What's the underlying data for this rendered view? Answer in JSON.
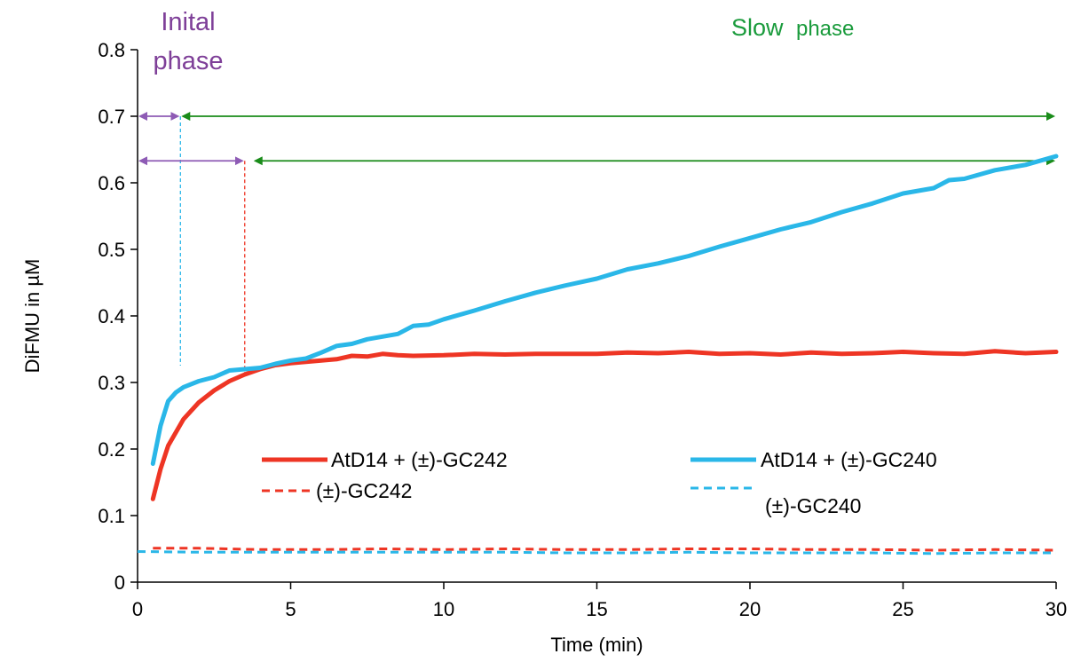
{
  "chart_data": {
    "type": "line",
    "title": "",
    "xlabel": "Time (min)",
    "ylabel": "DiFMU in µM",
    "xlim": [
      0,
      30
    ],
    "ylim": [
      0,
      0.8
    ],
    "x_ticks": [
      0,
      5,
      10,
      15,
      20,
      25,
      30
    ],
    "y_ticks": [
      0,
      0.1,
      0.2,
      0.3,
      0.4,
      0.5,
      0.6,
      0.7,
      0.8
    ],
    "x_tick_labels": [
      "0",
      "5",
      "10",
      "15",
      "20",
      "25",
      "30"
    ],
    "y_tick_labels": [
      "0",
      "0.1",
      "0.2",
      "0.3",
      "0.4",
      "0.5",
      "0.6",
      "0.7",
      "0.8"
    ],
    "grid": false,
    "legend_position": "center",
    "series": [
      {
        "name": "AtD14 + (±)-GC242",
        "color": "#ee3524",
        "style": "solid",
        "x": [
          0.5,
          0.75,
          1.0,
          1.5,
          2.0,
          2.5,
          3.0,
          3.5,
          4.0,
          4.5,
          5.0,
          5.5,
          6.0,
          6.5,
          7.0,
          7.5,
          8.0,
          8.5,
          9.0,
          10.0,
          11.0,
          12.0,
          13.0,
          14.0,
          15.0,
          16.0,
          17.0,
          18.0,
          19.0,
          20.0,
          21.0,
          22.0,
          23.0,
          24.0,
          25.0,
          26.0,
          27.0,
          28.0,
          29.0,
          30.0
        ],
        "y": [
          0.125,
          0.17,
          0.205,
          0.245,
          0.27,
          0.288,
          0.302,
          0.312,
          0.32,
          0.326,
          0.329,
          0.331,
          0.333,
          0.335,
          0.34,
          0.339,
          0.343,
          0.341,
          0.34,
          0.341,
          0.343,
          0.342,
          0.343,
          0.343,
          0.343,
          0.345,
          0.344,
          0.346,
          0.343,
          0.344,
          0.342,
          0.345,
          0.343,
          0.344,
          0.346,
          0.344,
          0.343,
          0.347,
          0.344,
          0.346
        ]
      },
      {
        "name": "AtD14 + (±)-GC240",
        "color": "#2ab7e8",
        "style": "solid",
        "x": [
          0.5,
          0.75,
          1.0,
          1.25,
          1.5,
          2.0,
          2.5,
          3.0,
          3.5,
          4.0,
          4.5,
          5.0,
          5.5,
          6.0,
          6.5,
          7.0,
          7.5,
          8.0,
          8.5,
          9.0,
          9.5,
          10.0,
          11.0,
          12.0,
          13.0,
          14.0,
          15.0,
          16.0,
          17.0,
          18.0,
          19.0,
          20.0,
          21.0,
          22.0,
          23.0,
          24.0,
          25.0,
          26.0,
          26.5,
          27.0,
          28.0,
          29.0,
          30.0
        ],
        "y": [
          0.178,
          0.235,
          0.272,
          0.285,
          0.293,
          0.302,
          0.308,
          0.318,
          0.32,
          0.322,
          0.328,
          0.333,
          0.336,
          0.345,
          0.355,
          0.358,
          0.365,
          0.369,
          0.373,
          0.385,
          0.387,
          0.395,
          0.408,
          0.422,
          0.435,
          0.446,
          0.456,
          0.47,
          0.479,
          0.49,
          0.504,
          0.517,
          0.53,
          0.541,
          0.556,
          0.569,
          0.584,
          0.592,
          0.604,
          0.606,
          0.619,
          0.627,
          0.64
        ]
      },
      {
        "name": "(±)-GC242",
        "color": "#ee3524",
        "style": "dashed",
        "x": [
          0.5,
          2.0,
          4.0,
          6.0,
          8.0,
          10.0,
          12.0,
          14.0,
          16.0,
          18.0,
          20.0,
          22.0,
          24.0,
          26.0,
          28.0,
          30.0
        ],
        "y": [
          0.051,
          0.051,
          0.049,
          0.049,
          0.05,
          0.049,
          0.05,
          0.049,
          0.049,
          0.05,
          0.05,
          0.049,
          0.049,
          0.048,
          0.049,
          0.048
        ]
      },
      {
        "name": "(±)-GC240",
        "color": "#2ab7e8",
        "style": "dashed",
        "x": [
          0,
          2.0,
          4.0,
          6.0,
          8.0,
          10.0,
          12.0,
          14.0,
          16.0,
          18.0,
          20.0,
          22.0,
          24.0,
          26.0,
          28.0,
          30.0
        ],
        "y": [
          0.046,
          0.045,
          0.045,
          0.045,
          0.045,
          0.045,
          0.045,
          0.044,
          0.044,
          0.045,
          0.044,
          0.044,
          0.044,
          0.043,
          0.044,
          0.044
        ]
      }
    ],
    "annotations": {
      "initial_phase_line1": "Inital",
      "initial_phase_line2": "phase",
      "slow_phase_word1": "Slow",
      "slow_phase_word2": "phase",
      "initial_phase_color": "#7e3f98",
      "slow_phase_color": "#1a9b3c",
      "arrow_initial_color": "#8e5bb5",
      "arrow_slow_color": "#1a8c1a",
      "phase_ranges": [
        {
          "series": "AtD14 + (±)-GC240",
          "y": 0.7,
          "initial": [
            0,
            1.4
          ],
          "slow": [
            1.4,
            30
          ]
        },
        {
          "series": "AtD14 + (±)-GC242",
          "y": 0.633,
          "initial": [
            0,
            3.5
          ],
          "slow": [
            3.5,
            30
          ]
        }
      ]
    }
  }
}
